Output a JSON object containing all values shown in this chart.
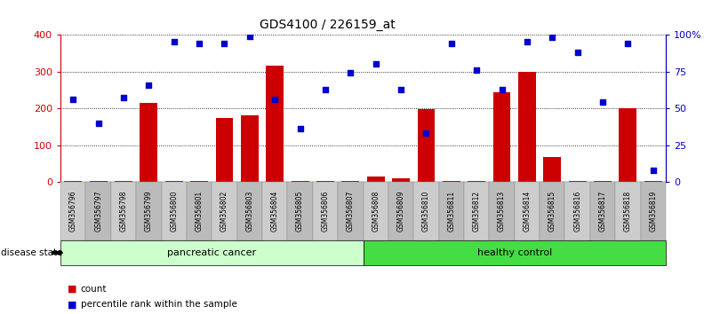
{
  "title": "GDS4100 / 226159_at",
  "samples": [
    "GSM356796",
    "GSM356797",
    "GSM356798",
    "GSM356799",
    "GSM356800",
    "GSM356801",
    "GSM356802",
    "GSM356803",
    "GSM356804",
    "GSM356805",
    "GSM356806",
    "GSM356807",
    "GSM356808",
    "GSM356809",
    "GSM356810",
    "GSM356811",
    "GSM356812",
    "GSM356813",
    "GSM356814",
    "GSM356815",
    "GSM356816",
    "GSM356817",
    "GSM356818",
    "GSM356819"
  ],
  "counts": [
    4,
    4,
    4,
    215,
    4,
    4,
    175,
    180,
    315,
    4,
    4,
    4,
    15,
    10,
    197,
    4,
    4,
    244,
    300,
    68,
    4,
    4,
    200,
    4
  ],
  "percentile_ranks_pct": [
    56,
    40,
    57,
    66,
    95,
    94,
    94,
    99,
    56,
    36,
    63,
    74,
    80,
    63,
    33,
    94,
    76,
    63,
    95,
    98,
    88,
    54,
    94,
    8
  ],
  "groups": [
    "pancreatic cancer",
    "pancreatic cancer",
    "pancreatic cancer",
    "pancreatic cancer",
    "pancreatic cancer",
    "pancreatic cancer",
    "pancreatic cancer",
    "pancreatic cancer",
    "pancreatic cancer",
    "pancreatic cancer",
    "pancreatic cancer",
    "pancreatic cancer",
    "healthy control",
    "healthy control",
    "healthy control",
    "healthy control",
    "healthy control",
    "healthy control",
    "healthy control",
    "healthy control",
    "healthy control",
    "healthy control",
    "healthy control",
    "healthy control"
  ],
  "group_colors": {
    "pancreatic cancer": "#ccffcc",
    "healthy control": "#44dd44"
  },
  "bar_color": "#cc0000",
  "scatter_color": "#0000cc",
  "ylim_left": [
    0,
    400
  ],
  "ylim_right": [
    0,
    100
  ],
  "yticks_left": [
    0,
    100,
    200,
    300,
    400
  ],
  "yticks_right": [
    0,
    25,
    50,
    75,
    100
  ],
  "yticklabels_right": [
    "0",
    "25",
    "50",
    "75",
    "100%"
  ],
  "legend_count_label": "count",
  "legend_pct_label": "percentile rank within the sample",
  "disease_state_label": "disease state"
}
